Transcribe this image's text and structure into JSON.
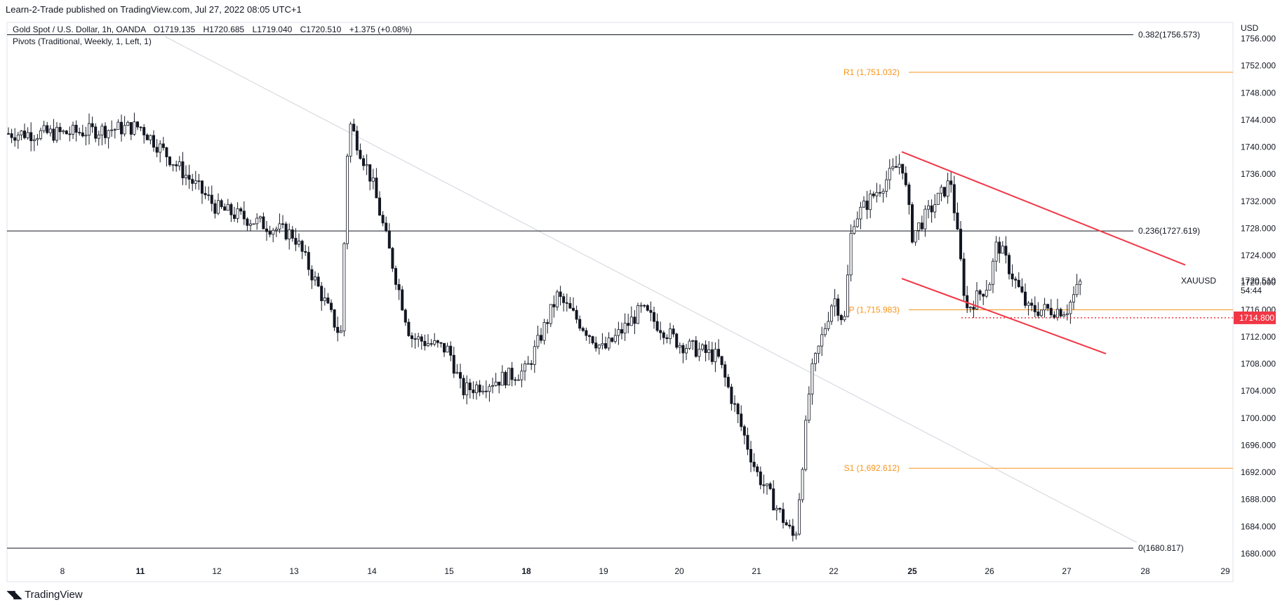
{
  "header": {
    "published": "Learn-2-Trade published on TradingView.com, Jul 27, 2022 08:05 UTC+1"
  },
  "legend": {
    "symbol_line": "Gold Spot / U.S. Dollar, 1h, OANDA",
    "open": "O1719.135",
    "high": "H1720.685",
    "low": "L1719.040",
    "close": "C1720.510",
    "change": "+1.375 (+0.08%)",
    "indicator": "Pivots (Traditional, Weekly, 1, Left, 1)"
  },
  "price_axis": {
    "currency": "USD",
    "ticks": [
      "1756.000",
      "1752.000",
      "1748.000",
      "1744.000",
      "1740.000",
      "1736.000",
      "1732.000",
      "1728.000",
      "1724.000",
      "1720.000",
      "1716.000",
      "1712.000",
      "1708.000",
      "1704.000",
      "1700.000",
      "1696.000",
      "1692.000",
      "1688.000",
      "1684.000",
      "1680.000"
    ]
  },
  "time_axis": {
    "ticks": [
      "8",
      "11",
      "12",
      "13",
      "14",
      "15",
      "18",
      "19",
      "20",
      "21",
      "22",
      "25",
      "26",
      "27",
      "28",
      "29"
    ]
  },
  "last_price": {
    "symbol": "XAUUSD",
    "price": "1720.510",
    "countdown": "54:44",
    "marked_level": "1714.800"
  },
  "fib_levels": [
    {
      "label": "0.382(1756.573)",
      "price": 1756.573
    },
    {
      "label": "0.236(1727.619)",
      "price": 1727.619
    },
    {
      "label": "0(1680.817)",
      "price": 1680.817
    }
  ],
  "pivots": [
    {
      "label": "R1 (1,751.032)",
      "price": 1751.032
    },
    {
      "label": "P (1,715.983)",
      "price": 1715.983
    },
    {
      "label": "S1 (1,692.612)",
      "price": 1692.612
    }
  ],
  "colors": {
    "trendline": "#f23645",
    "pivot": "#f7931a",
    "candle": "#131722",
    "fib_line": "#131722",
    "price_tag": "#f23645"
  },
  "chart_data": {
    "type": "candlestick",
    "symbol": "Gold Spot / U.S. Dollar",
    "interval": "1h",
    "ylim": [
      1680,
      1756
    ],
    "x_ticks": [
      "8",
      "11",
      "12",
      "13",
      "14",
      "15",
      "18",
      "19",
      "20",
      "21",
      "22",
      "25",
      "26",
      "27",
      "28",
      "29"
    ],
    "approx_close_path": [
      {
        "x": "8",
        "y": 1742
      },
      {
        "x": "11",
        "y": 1743
      },
      {
        "x": "12",
        "y": 1731
      },
      {
        "x": "13",
        "y": 1727
      },
      {
        "x": "13.6",
        "y": 1712
      },
      {
        "x": "13.7",
        "y": 1744
      },
      {
        "x": "14",
        "y": 1735
      },
      {
        "x": "14.5",
        "y": 1712
      },
      {
        "x": "15",
        "y": 1710
      },
      {
        "x": "15.5",
        "y": 1704
      },
      {
        "x": "18",
        "y": 1707
      },
      {
        "x": "18.4",
        "y": 1718
      },
      {
        "x": "19",
        "y": 1710
      },
      {
        "x": "19.5",
        "y": 1716
      },
      {
        "x": "20",
        "y": 1711
      },
      {
        "x": "20.5",
        "y": 1709
      },
      {
        "x": "21",
        "y": 1692
      },
      {
        "x": "21.5",
        "y": 1682
      },
      {
        "x": "21.7",
        "y": 1706
      },
      {
        "x": "22",
        "y": 1718
      },
      {
        "x": "22.4",
        "y": 1714
      },
      {
        "x": "22.7",
        "y": 1729
      },
      {
        "x": "24.6",
        "y": 1738
      },
      {
        "x": "25",
        "y": 1727
      },
      {
        "x": "25.5",
        "y": 1735
      },
      {
        "x": "25.7",
        "y": 1716
      },
      {
        "x": "26",
        "y": 1720
      },
      {
        "x": "26.1",
        "y": 1726
      },
      {
        "x": "26.5",
        "y": 1716
      },
      {
        "x": "27",
        "y": 1716
      },
      {
        "x": "27.2",
        "y": 1720.51
      }
    ],
    "last_close": 1720.51,
    "channel_upper": {
      "from": {
        "x": "24.6",
        "y": 1739.3
      },
      "to": {
        "x": "28.5",
        "y": 1722.6
      }
    },
    "channel_lower": {
      "from": {
        "x": "24.6",
        "y": 1720.6
      },
      "to": {
        "x": "27.5",
        "y": 1709.5
      }
    }
  }
}
